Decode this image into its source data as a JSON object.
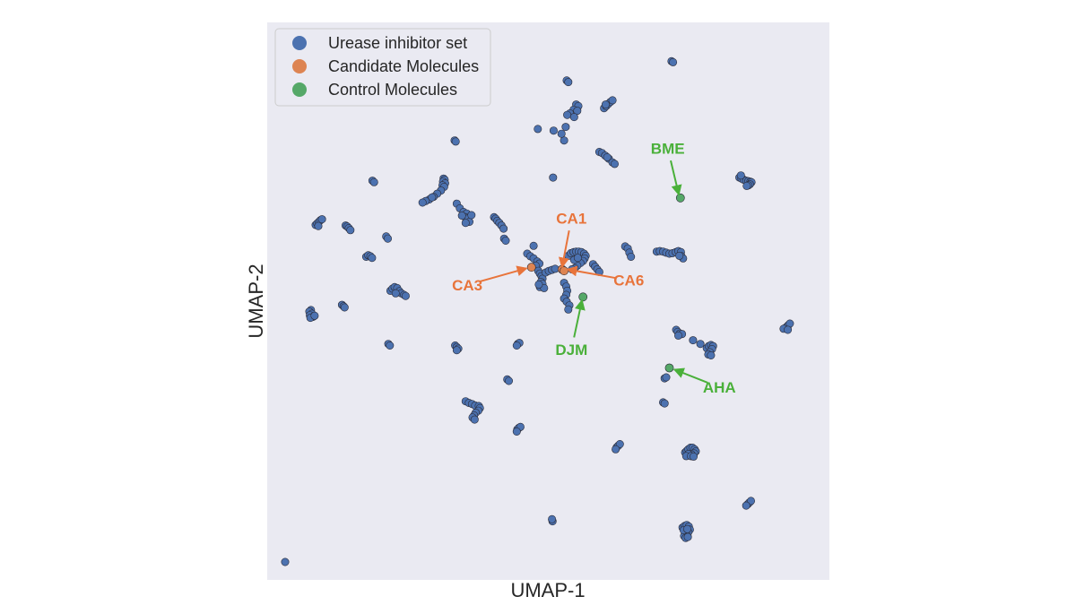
{
  "chart_data": {
    "type": "scatter",
    "title": "",
    "xlabel": "UMAP-1",
    "ylabel": "UMAP-2",
    "xlim": [
      0,
      100
    ],
    "ylim": [
      0,
      100
    ],
    "grid": false,
    "background": "#eaeaf2",
    "legend_position": "top-left",
    "series": [
      {
        "name": "Urease inhibitor set",
        "color": "#4c72b0",
        "points": [
          [
            50.8,
            7.8
          ],
          [
            50.7,
            8.2
          ],
          [
            73.4,
            96.0
          ],
          [
            73.7,
            95.8
          ],
          [
            55.3,
            87.7
          ],
          [
            55.7,
            87.4
          ],
          [
            54.8,
            86.7
          ],
          [
            54.1,
            86.0
          ],
          [
            53.6,
            85.7
          ],
          [
            55.5,
            86.5
          ],
          [
            54.9,
            85.3
          ],
          [
            53.3,
            83.4
          ],
          [
            60.6,
            87.0
          ],
          [
            61.0,
            87.4
          ],
          [
            61.4,
            87.8
          ],
          [
            61.8,
            88.2
          ],
          [
            62.2,
            88.5
          ],
          [
            60.9,
            87.7
          ],
          [
            32.2,
            80.8
          ],
          [
            32.4,
            80.6
          ],
          [
            59.7,
            78.6
          ],
          [
            60.2,
            78.4
          ],
          [
            60.8,
            77.9
          ],
          [
            61.5,
            77.3
          ],
          [
            62.2,
            76.6
          ],
          [
            62.6,
            76.3
          ],
          [
            61.2,
            77.6
          ],
          [
            50.9,
            73.7
          ],
          [
            16.6,
            73.1
          ],
          [
            16.9,
            72.8
          ],
          [
            30.1,
            73.5
          ],
          [
            30.3,
            73.3
          ],
          [
            30.0,
            72.9
          ],
          [
            30.4,
            72.6
          ],
          [
            29.9,
            72.2
          ],
          [
            30.2,
            71.9
          ],
          [
            29.6,
            71.2
          ],
          [
            28.9,
            70.6
          ],
          [
            28.2,
            70.0
          ],
          [
            27.4,
            69.5
          ],
          [
            26.7,
            69.2
          ],
          [
            26.1,
            68.9
          ],
          [
            27.9,
            69.9
          ],
          [
            32.6,
            68.7
          ],
          [
            33.2,
            67.8
          ],
          [
            33.9,
            67.1
          ],
          [
            34.5,
            66.8
          ],
          [
            34.2,
            66.1
          ],
          [
            34.8,
            65.9
          ],
          [
            35.0,
            65.2
          ],
          [
            34.3,
            65.0
          ],
          [
            35.4,
            66.5
          ],
          [
            33.6,
            66.4
          ],
          [
            39.7,
            66.1
          ],
          [
            40.0,
            65.8
          ],
          [
            40.3,
            65.4
          ],
          [
            40.7,
            65.0
          ],
          [
            41.1,
            64.5
          ],
          [
            41.5,
            63.9
          ],
          [
            41.6,
            62.0
          ],
          [
            41.9,
            61.6
          ],
          [
            86.3,
            73.7
          ],
          [
            86.7,
            73.5
          ],
          [
            87.1,
            73.3
          ],
          [
            87.6,
            73.1
          ],
          [
            88.0,
            73.0
          ],
          [
            88.4,
            72.9
          ],
          [
            88.6,
            72.8
          ],
          [
            88.3,
            72.4
          ],
          [
            88.0,
            72.2
          ],
          [
            87.7,
            72.1
          ],
          [
            5.8,
            64.6
          ],
          [
            6.1,
            64.9
          ],
          [
            6.4,
            65.2
          ],
          [
            6.7,
            65.5
          ],
          [
            7.0,
            65.7
          ],
          [
            6.3,
            64.4
          ],
          [
            11.5,
            64.5
          ],
          [
            11.8,
            64.3
          ],
          [
            12.1,
            64.0
          ],
          [
            12.4,
            63.6
          ],
          [
            19.2,
            62.4
          ],
          [
            19.5,
            62.0
          ],
          [
            46.0,
            59.1
          ],
          [
            46.6,
            58.6
          ],
          [
            47.2,
            58.2
          ],
          [
            47.9,
            57.6
          ],
          [
            48.3,
            57.2
          ],
          [
            47.6,
            56.8
          ],
          [
            48.1,
            55.8
          ],
          [
            48.4,
            55.3
          ],
          [
            48.7,
            54.8
          ],
          [
            48.9,
            54.3
          ],
          [
            48.6,
            53.7
          ],
          [
            48.9,
            53.3
          ],
          [
            48.4,
            52.7
          ],
          [
            49.2,
            52.5
          ],
          [
            48.2,
            53.2
          ],
          [
            49.5,
            55.5
          ],
          [
            50.1,
            55.8
          ],
          [
            50.7,
            56.0
          ],
          [
            51.3,
            56.2
          ],
          [
            53.8,
            58.7
          ],
          [
            54.3,
            59.2
          ],
          [
            54.8,
            59.4
          ],
          [
            55.3,
            59.5
          ],
          [
            55.8,
            59.5
          ],
          [
            56.3,
            59.4
          ],
          [
            56.8,
            59.1
          ],
          [
            57.1,
            58.7
          ],
          [
            56.9,
            58.2
          ],
          [
            56.6,
            57.7
          ],
          [
            56.1,
            57.3
          ],
          [
            55.5,
            56.8
          ],
          [
            55.0,
            56.3
          ],
          [
            54.5,
            56.1
          ],
          [
            54.9,
            57.9
          ],
          [
            55.6,
            58.3
          ],
          [
            58.5,
            57.1
          ],
          [
            58.9,
            56.6
          ],
          [
            59.3,
            56.1
          ],
          [
            59.7,
            55.6
          ],
          [
            53.0,
            53.5
          ],
          [
            53.4,
            52.8
          ],
          [
            53.6,
            52.0
          ],
          [
            53.4,
            51.2
          ],
          [
            53.0,
            50.5
          ],
          [
            53.5,
            49.9
          ],
          [
            54.0,
            49.2
          ],
          [
            53.8,
            48.4
          ],
          [
            70.6,
            59.5
          ],
          [
            71.2,
            59.6
          ],
          [
            71.8,
            59.5
          ],
          [
            72.4,
            59.3
          ],
          [
            73.0,
            59.1
          ],
          [
            73.6,
            59.2
          ],
          [
            74.2,
            59.4
          ],
          [
            74.7,
            59.6
          ],
          [
            75.2,
            59.4
          ],
          [
            75.3,
            58.6
          ],
          [
            75.6,
            58.2
          ],
          [
            74.9,
            58.7
          ],
          [
            86.6,
            74.1
          ],
          [
            47.2,
            60.6
          ],
          [
            0.0,
            0.0
          ],
          [
            20.0,
            52.0
          ],
          [
            20.4,
            52.4
          ],
          [
            20.8,
            52.7
          ],
          [
            21.3,
            52.5
          ],
          [
            21.7,
            51.9
          ],
          [
            22.1,
            51.5
          ],
          [
            22.6,
            51.2
          ],
          [
            22.9,
            51.0
          ],
          [
            21.0,
            51.5
          ],
          [
            10.8,
            49.3
          ],
          [
            11.1,
            49.0
          ],
          [
            11.3,
            48.8
          ],
          [
            4.9,
            48.3
          ],
          [
            4.6,
            48.0
          ],
          [
            5.1,
            47.6
          ],
          [
            4.7,
            47.3
          ],
          [
            5.3,
            47.0
          ],
          [
            4.8,
            46.8
          ],
          [
            5.6,
            47.2
          ],
          [
            95.0,
            44.8
          ],
          [
            95.3,
            45.1
          ],
          [
            95.6,
            45.4
          ],
          [
            95.9,
            45.7
          ],
          [
            94.7,
            44.7
          ],
          [
            95.5,
            44.5
          ],
          [
            74.3,
            44.5
          ],
          [
            74.6,
            44.1
          ],
          [
            75.0,
            43.8
          ],
          [
            75.4,
            43.7
          ],
          [
            74.7,
            43.4
          ],
          [
            77.5,
            42.5
          ],
          [
            78.9,
            41.8
          ],
          [
            80.1,
            41.0
          ],
          [
            80.5,
            41.4
          ],
          [
            80.9,
            41.6
          ],
          [
            81.3,
            41.4
          ],
          [
            81.1,
            40.8
          ],
          [
            80.7,
            40.2
          ],
          [
            80.4,
            39.8
          ],
          [
            80.9,
            39.6
          ],
          [
            19.6,
            41.8
          ],
          [
            19.9,
            41.5
          ],
          [
            32.3,
            41.5
          ],
          [
            32.6,
            41.2
          ],
          [
            32.9,
            40.9
          ],
          [
            32.6,
            40.6
          ],
          [
            44.2,
            41.8
          ],
          [
            44.5,
            42.0
          ],
          [
            44.0,
            41.5
          ],
          [
            42.2,
            35.0
          ],
          [
            42.5,
            34.7
          ],
          [
            72.1,
            35.2
          ],
          [
            72.4,
            35.4
          ],
          [
            71.8,
            30.6
          ],
          [
            72.1,
            30.4
          ],
          [
            34.3,
            30.8
          ],
          [
            34.9,
            30.5
          ],
          [
            35.5,
            30.3
          ],
          [
            36.1,
            30.0
          ],
          [
            36.8,
            29.9
          ],
          [
            37.0,
            29.5
          ],
          [
            36.7,
            29.0
          ],
          [
            36.2,
            28.6
          ],
          [
            35.9,
            28.1
          ],
          [
            35.6,
            27.7
          ],
          [
            36.0,
            27.3
          ],
          [
            44.1,
            25.4
          ],
          [
            44.4,
            25.7
          ],
          [
            44.7,
            25.9
          ],
          [
            44.0,
            25.0
          ],
          [
            63.0,
            22.0
          ],
          [
            63.3,
            22.3
          ],
          [
            63.6,
            22.6
          ],
          [
            62.8,
            21.6
          ],
          [
            76.0,
            21.0
          ],
          [
            76.3,
            21.3
          ],
          [
            76.6,
            21.6
          ],
          [
            77.0,
            21.9
          ],
          [
            77.4,
            21.9
          ],
          [
            77.8,
            21.6
          ],
          [
            78.0,
            21.2
          ],
          [
            77.7,
            20.8
          ],
          [
            77.2,
            20.6
          ],
          [
            76.6,
            20.7
          ],
          [
            76.2,
            20.3
          ],
          [
            77.1,
            20.3
          ],
          [
            77.6,
            20.2
          ],
          [
            87.9,
            11.1
          ],
          [
            88.2,
            11.4
          ],
          [
            88.5,
            11.7
          ],
          [
            87.6,
            10.8
          ],
          [
            75.5,
            6.6
          ],
          [
            75.9,
            6.9
          ],
          [
            76.3,
            7.1
          ],
          [
            76.7,
            6.8
          ],
          [
            76.9,
            6.2
          ],
          [
            76.6,
            5.7
          ],
          [
            76.2,
            5.3
          ],
          [
            75.8,
            5.0
          ],
          [
            76.1,
            4.6
          ],
          [
            76.5,
            4.8
          ],
          [
            75.7,
            6.1
          ],
          [
            76.4,
            6.3
          ],
          [
            53.5,
            92.3
          ],
          [
            53.8,
            92.0
          ],
          [
            15.4,
            58.5
          ],
          [
            15.8,
            58.8
          ],
          [
            16.2,
            58.6
          ],
          [
            16.5,
            58.3
          ],
          [
            48.0,
            83.0
          ],
          [
            51.0,
            82.7
          ],
          [
            53.0,
            80.8
          ],
          [
            52.5,
            82.1
          ],
          [
            64.6,
            60.5
          ],
          [
            65.1,
            60.1
          ],
          [
            65.4,
            59.3
          ],
          [
            65.7,
            58.5
          ]
        ]
      },
      {
        "name": "Candidate Molecules",
        "color": "#dd8452",
        "points": [
          [
            46.8,
            56.5
          ],
          [
            52.6,
            56.1
          ],
          [
            53.0,
            55.8
          ]
        ]
      },
      {
        "name": "Control Molecules",
        "color": "#55a868",
        "points": [
          [
            75.1,
            69.8
          ],
          [
            56.6,
            50.8
          ],
          [
            73.0,
            37.2
          ]
        ]
      }
    ],
    "annotations": [
      {
        "text": "BME",
        "color": "#4ab03a",
        "text_at": [
          72.7,
          79.3
        ],
        "point": [
          74.8,
          70.4
        ]
      },
      {
        "text": "CA1",
        "color": "#e8743b",
        "text_at": [
          54.4,
          65.9
        ],
        "point": [
          52.6,
          56.5
        ]
      },
      {
        "text": "CA3",
        "color": "#e8743b",
        "text_at": [
          34.6,
          53.1
        ],
        "point": [
          45.9,
          56.3
        ]
      },
      {
        "text": "CA6",
        "color": "#e8743b",
        "text_at": [
          65.3,
          54.0
        ],
        "point": [
          53.6,
          56.1
        ]
      },
      {
        "text": "DJM",
        "color": "#4ab03a",
        "text_at": [
          54.4,
          40.7
        ],
        "point": [
          56.4,
          50.2
        ]
      },
      {
        "text": "AHA",
        "color": "#4ab03a",
        "text_at": [
          82.5,
          33.5
        ],
        "point": [
          73.9,
          36.9
        ]
      }
    ]
  }
}
